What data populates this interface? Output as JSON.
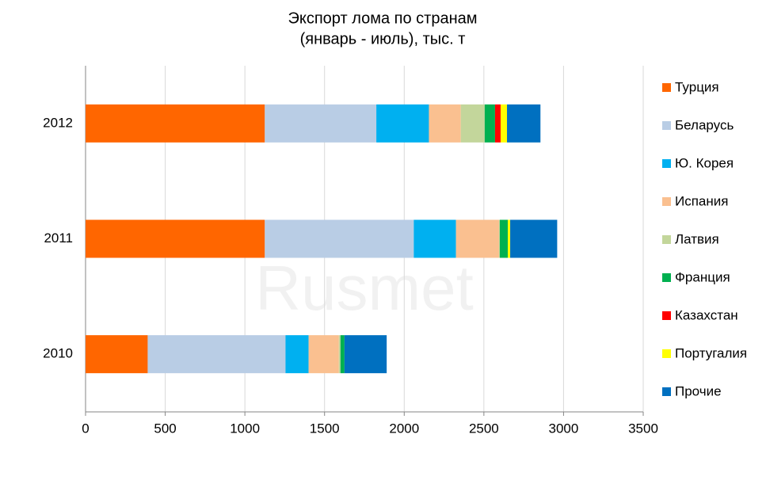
{
  "chart_data": {
    "type": "stacked-bar-horizontal",
    "title": [
      "Экспорт лома по странам",
      "(январь - июль), тыс. т"
    ],
    "watermark": "Rusmet",
    "categories": [
      "2012",
      "2011",
      "2010"
    ],
    "series": [
      {
        "name": "Турция",
        "color": "#ff6600",
        "values": [
          1125,
          1125,
          390
        ]
      },
      {
        "name": "Беларусь",
        "color": "#b9cde5",
        "values": [
          700,
          935,
          865
        ]
      },
      {
        "name": "Ю. Корея",
        "color": "#00b0f0",
        "values": [
          330,
          265,
          145
        ]
      },
      {
        "name": "Испания",
        "color": "#fac090",
        "values": [
          200,
          270,
          190
        ]
      },
      {
        "name": "Латвия",
        "color": "#c3d69b",
        "values": [
          150,
          5,
          10
        ]
      },
      {
        "name": "Франция",
        "color": "#00b050",
        "values": [
          65,
          50,
          25
        ]
      },
      {
        "name": "Казахстан",
        "color": "#ff0000",
        "values": [
          35,
          0,
          0
        ]
      },
      {
        "name": "Португалия",
        "color": "#ffff00",
        "values": [
          40,
          15,
          0
        ]
      },
      {
        "name": "Прочие",
        "color": "#0070c0",
        "values": [
          210,
          295,
          265
        ]
      }
    ],
    "xlim": [
      0,
      3500
    ],
    "xticks": [
      0,
      500,
      1000,
      1500,
      2000,
      2500,
      3000,
      3500
    ],
    "grid": true,
    "legend": "right"
  }
}
